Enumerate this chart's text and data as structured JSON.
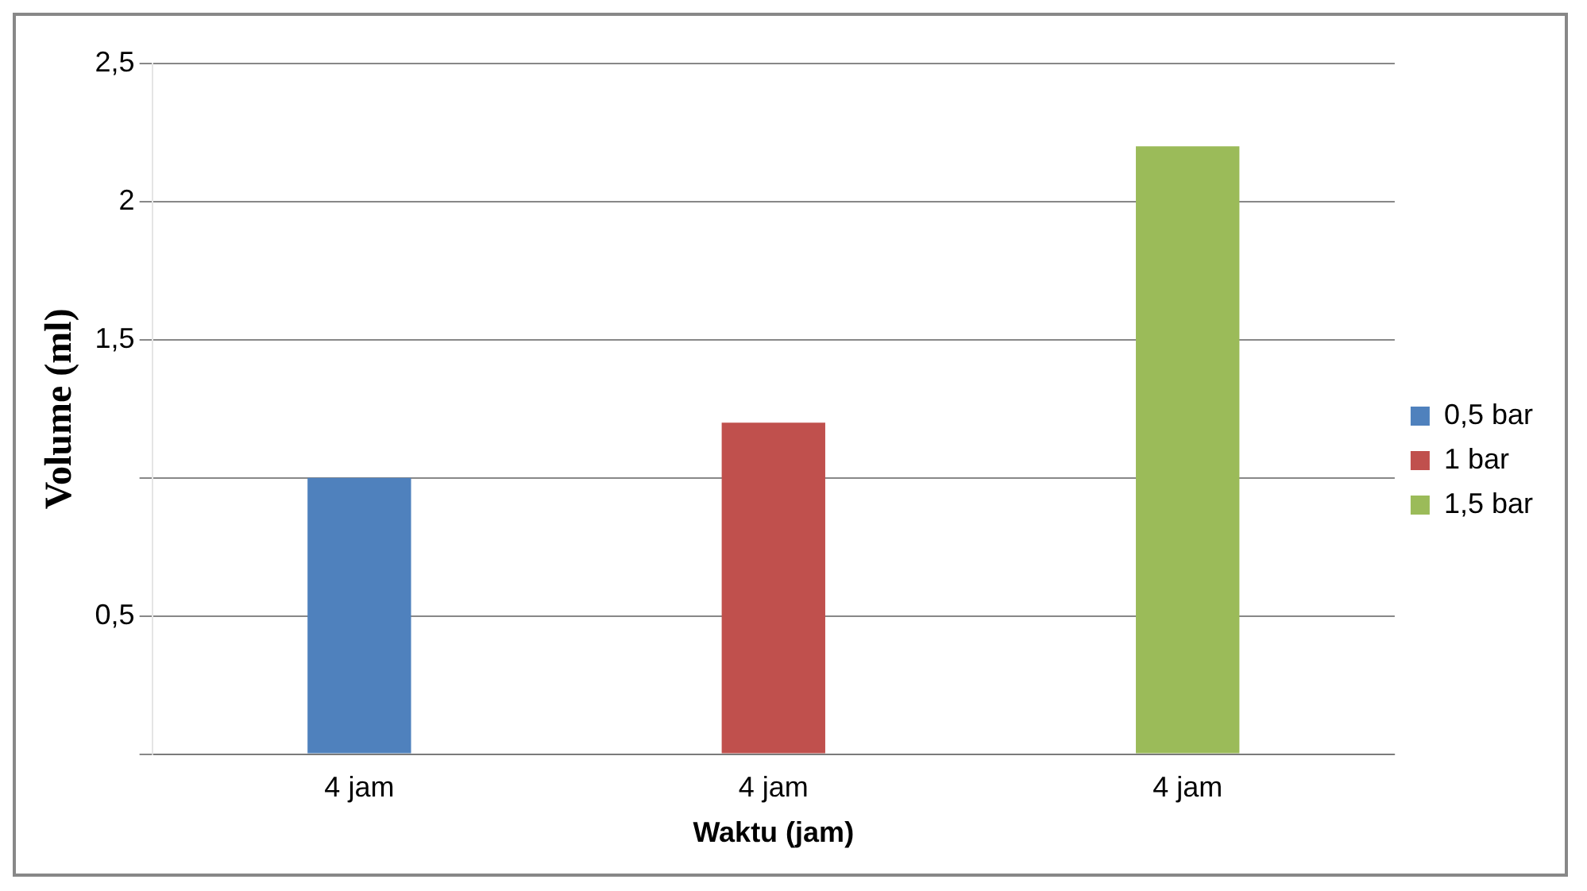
{
  "chart_data": {
    "type": "bar",
    "xlabel": "Waktu (jam)",
    "ylabel": "Volume (ml)",
    "categories": [
      "4 jam",
      "4 jam",
      "4 jam"
    ],
    "series": [
      {
        "name": "0,5 bar",
        "color": "#4f81bd",
        "values": [
          1.0,
          null,
          null
        ]
      },
      {
        "name": "1 bar",
        "color": "#c0504d",
        "values": [
          null,
          1.2,
          null
        ]
      },
      {
        "name": "1,5 bar",
        "color": "#9bbb59",
        "values": [
          null,
          null,
          2.2
        ]
      }
    ],
    "ylim": [
      0,
      2.5
    ],
    "yticks": [
      {
        "value": 0,
        "label": null
      },
      {
        "value": 0.5,
        "label": "0,5"
      },
      {
        "value": 1,
        "label": null
      },
      {
        "value": 1.5,
        "label": "1,5"
      },
      {
        "value": 2,
        "label": "2"
      },
      {
        "value": 2.5,
        "label": "2,5"
      }
    ],
    "grid": "y",
    "legend": "right"
  }
}
